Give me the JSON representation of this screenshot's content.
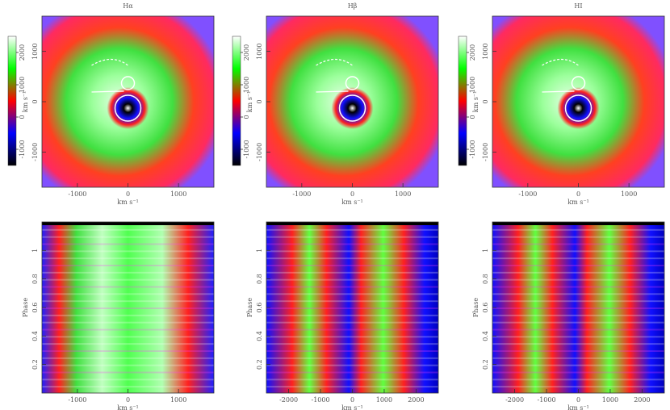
{
  "chart_data": [
    {
      "type": "tomogram",
      "title": "Hα",
      "xlabel": "km s⁻¹",
      "ylabel": "km s⁻¹",
      "xlim": [
        -1700,
        1700
      ],
      "ylim": [
        -1700,
        1700
      ],
      "xticks": [
        -1000,
        0,
        1000
      ],
      "yticks": [
        -1000,
        0,
        1000
      ],
      "clim": [
        -1500,
        2500
      ],
      "cticks": [
        -1000,
        0,
        1000,
        2000
      ]
    },
    {
      "type": "tomogram",
      "title": "Hβ",
      "xlabel": "km s⁻¹",
      "ylabel": "km s⁻¹",
      "xlim": [
        -1700,
        1700
      ],
      "ylim": [
        -1700,
        1700
      ],
      "xticks": [
        -1000,
        0,
        1000
      ],
      "yticks": [
        -1000,
        0,
        1000
      ],
      "clim": [
        -1500,
        2500
      ],
      "cticks": [
        -1000,
        0,
        1000,
        2000
      ]
    },
    {
      "type": "tomogram",
      "title": "HI",
      "xlabel": "km s⁻¹",
      "ylabel": "km s⁻¹",
      "xlim": [
        -1700,
        1700
      ],
      "ylim": [
        -1700,
        1700
      ],
      "xticks": [
        -1000,
        0,
        1000
      ],
      "yticks": [
        -1000,
        0,
        1000
      ],
      "clim": [
        -1500,
        2500
      ],
      "cticks": [
        -1000,
        0,
        1000,
        2000
      ]
    },
    {
      "type": "trailed",
      "xlabel": "km s⁻¹",
      "ylabel": "Phase",
      "xlim": [
        -1700,
        1700
      ],
      "ylim": [
        0,
        1.2
      ],
      "xticks": [
        -1000,
        0,
        1000
      ],
      "yticks": [
        0.2,
        0.4,
        0.6,
        0.8,
        1
      ]
    },
    {
      "type": "trailed",
      "xlabel": "km s⁻¹",
      "ylabel": "Phase",
      "xlim": [
        -2700,
        2700
      ],
      "ylim": [
        0,
        1.2
      ],
      "xticks": [
        -2000,
        -1000,
        0,
        1000,
        2000
      ],
      "yticks": [
        0.2,
        0.4,
        0.6,
        0.8,
        1
      ]
    },
    {
      "type": "trailed",
      "xlabel": "km s⁻¹",
      "ylabel": "Phase",
      "xlim": [
        -2700,
        2700
      ],
      "ylim": [
        0,
        1.2
      ],
      "xticks": [
        -2000,
        -1000,
        0,
        1000,
        2000
      ],
      "yticks": [
        0.2,
        0.4,
        0.6,
        0.8,
        1
      ]
    }
  ]
}
